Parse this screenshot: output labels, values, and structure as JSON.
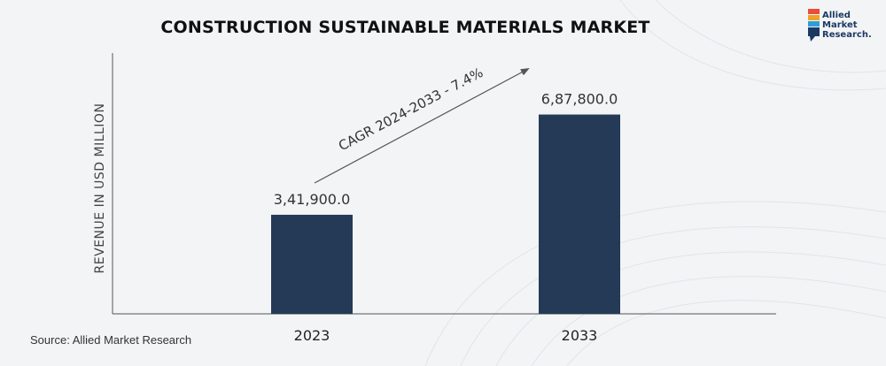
{
  "logo": {
    "line1": "Allied",
    "line2": "Market",
    "line3": "Research."
  },
  "source": "Source: Allied Market Research",
  "chart_data": {
    "type": "bar",
    "title": "CONSTRUCTION SUSTAINABLE MATERIALS MARKET",
    "xlabel": "",
    "ylabel": "REVENUE IN USD MILLION",
    "categories": [
      "2023",
      "2033"
    ],
    "values": [
      341900.0,
      687800.0
    ],
    "value_labels": [
      "3,41,900.0",
      "6,87,800.0"
    ],
    "ylim": [
      0,
      900000
    ],
    "grid": false,
    "annotation": "CAGR 2024-2033 - 7.4%",
    "colors": {
      "bar": "#253a57",
      "axis": "#555555",
      "arrow": "#555555"
    }
  }
}
